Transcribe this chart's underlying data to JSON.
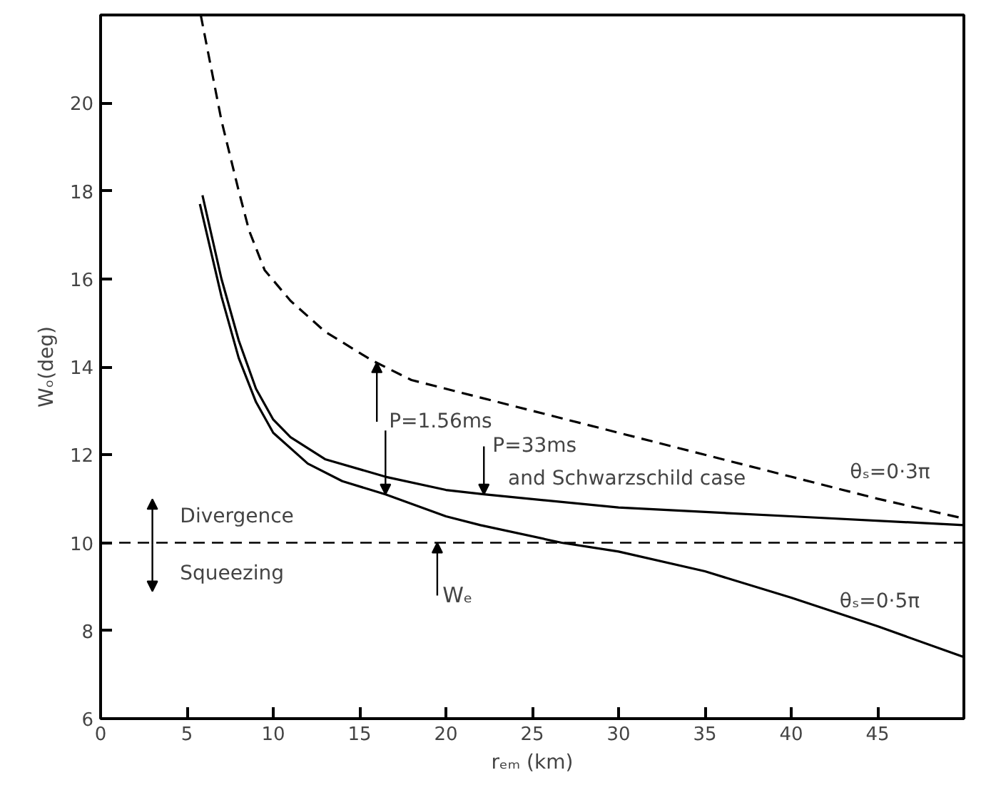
{
  "chart_data": {
    "type": "line",
    "xlabel": "rₑₘ (km)",
    "ylabel": "Wₒ(deg)",
    "xlim": [
      0,
      50
    ],
    "ylim": [
      6,
      22
    ],
    "xticks": [
      0,
      5,
      10,
      15,
      20,
      25,
      30,
      35,
      40,
      45
    ],
    "yticks": [
      6,
      8,
      10,
      12,
      14,
      16,
      18,
      20
    ],
    "grid": false,
    "marker": "none",
    "series": [
      {
        "color": "#000000",
        "line_style": "dashed",
        "x": [
          5.8,
          7,
          8,
          8.6,
          9.5,
          11,
          13,
          15.7,
          18,
          22,
          26,
          30,
          35,
          40,
          45,
          50
        ],
        "values": [
          22,
          19.6,
          18,
          17.1,
          16.2,
          15.5,
          14.8,
          14.15,
          13.7,
          13.3,
          12.9,
          12.5,
          12.0,
          11.5,
          11.0,
          10.55
        ]
      },
      {
        "color": "#000000",
        "line_style": "solid",
        "x": [
          5.9,
          7,
          8,
          9,
          10,
          11,
          13,
          16.5,
          20,
          22.2,
          30,
          40,
          50
        ],
        "values": [
          17.9,
          16.0,
          14.6,
          13.5,
          12.8,
          12.4,
          11.9,
          11.5,
          11.2,
          11.1,
          10.8,
          10.6,
          10.4
        ]
      },
      {
        "color": "#000000",
        "line_style": "solid",
        "x": [
          5.75,
          7,
          8,
          9,
          10,
          12,
          14,
          16.5,
          20,
          22,
          26.7,
          30,
          35,
          40,
          45,
          50
        ],
        "values": [
          17.7,
          15.6,
          14.2,
          13.2,
          12.5,
          11.8,
          11.4,
          11.1,
          10.6,
          10.4,
          10.0,
          9.8,
          9.35,
          8.75,
          8.1,
          7.4
        ]
      }
    ],
    "ref_lines": [
      {
        "axis": "y",
        "value": 10,
        "label": "Wₑ",
        "line_style": "dashed",
        "color": "#000000"
      }
    ],
    "annotations": [
      "Divergence",
      "Squeezing",
      {
        "text": "P=1.56ms",
        "x": 16,
        "y": 14.1
      },
      {
        "text": "P=33ms",
        "x": 22.2,
        "y": 11.1
      },
      "and Schwarzschild case",
      "θₛ=0·3π",
      "θₛ=0·5π"
    ]
  }
}
